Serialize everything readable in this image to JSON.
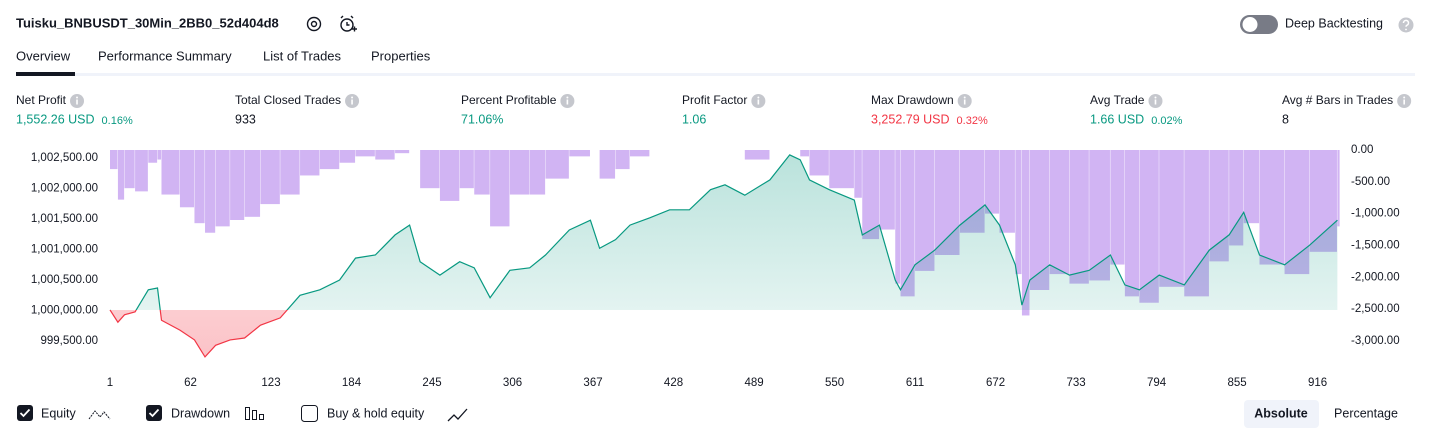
{
  "header": {
    "title": "Tuisku_BNBUSDT_30Min_2BB0_52d404d8",
    "toggle_label": "Deep Backtesting"
  },
  "tabs": [
    "Overview",
    "Performance Summary",
    "List of Trades",
    "Properties"
  ],
  "metrics": [
    {
      "label": "Net Profit",
      "value": "1,552.26 USD",
      "percent": "0.16%",
      "color": "#089981"
    },
    {
      "label": "Total Closed Trades",
      "value": "933",
      "color": "#131722"
    },
    {
      "label": "Percent Profitable",
      "value": "71.06%",
      "color": "#089981"
    },
    {
      "label": "Profit Factor",
      "value": "1.06",
      "color": "#089981"
    },
    {
      "label": "Max Drawdown",
      "value": "3,252.79 USD",
      "percent": "0.32%",
      "color": "#f23645"
    },
    {
      "label": "Avg Trade",
      "value": "1.66 USD",
      "percent": "0.02%",
      "color": "#089981"
    },
    {
      "label": "Avg # Bars in Trades",
      "value": "8",
      "color": "#131722"
    }
  ],
  "chart_data": {
    "type": "line",
    "x": [
      1,
      7,
      12,
      20,
      30,
      37,
      40,
      54,
      65,
      73,
      81,
      92,
      103,
      115,
      130,
      145,
      160,
      175,
      187,
      202,
      217,
      228,
      236,
      251,
      266,
      277,
      289,
      304,
      319,
      331,
      349,
      365,
      372,
      384,
      395,
      410,
      425,
      440,
      456,
      467,
      482,
      501,
      516,
      524,
      531,
      546,
      565,
      571,
      584,
      596,
      600,
      611,
      626,
      645,
      664,
      675,
      687,
      692,
      698,
      713,
      728,
      743,
      759,
      770,
      781,
      796,
      815,
      834,
      849,
      860,
      872,
      891,
      910,
      931
    ],
    "series": [
      {
        "name": "Equity",
        "color": "#089981",
        "negative_color": "#f23645",
        "values": [
          1000010,
          999810,
          999930,
          999980,
          1000340,
          1000370,
          999840,
          999680,
          999520,
          999240,
          999430,
          999520,
          999550,
          999760,
          999880,
          1000250,
          1000340,
          1000500,
          1000860,
          1000910,
          1001240,
          1001400,
          1000800,
          1000580,
          1000800,
          1000700,
          1000210,
          1000660,
          1000700,
          1000910,
          1001320,
          1001480,
          1001020,
          1001160,
          1001400,
          1001520,
          1001650,
          1001650,
          1001980,
          1002060,
          1001890,
          1002140,
          1002550,
          1002470,
          1002140,
          1001980,
          1001810,
          1001240,
          1001400,
          1000500,
          1000340,
          1000750,
          1000990,
          1001400,
          1001730,
          1001400,
          1000750,
          1000090,
          1000500,
          1000750,
          1000580,
          1000660,
          1000910,
          1000420,
          1000340,
          1000580,
          1000420,
          1000990,
          1001240,
          1001610,
          1000910,
          1000750,
          1001070,
          1001480
        ]
      },
      {
        "name": "Drawdown",
        "type": "bar",
        "axis": "y2",
        "color": "#c9a7f2",
        "values": [
          -300,
          -780,
          -600,
          -650,
          -200,
          -150,
          -700,
          -900,
          -1150,
          -1300,
          -1200,
          -1100,
          -1050,
          -850,
          -700,
          -400,
          -300,
          -200,
          -100,
          -150,
          -50,
          0,
          -600,
          -800,
          -600,
          -700,
          -1200,
          -700,
          -700,
          -450,
          -100,
          0,
          -450,
          -300,
          -100,
          0,
          0,
          0,
          0,
          0,
          -150,
          0,
          0,
          -100,
          -400,
          -600,
          -750,
          -1400,
          -1250,
          -2100,
          -2300,
          -1900,
          -1650,
          -1300,
          -1000,
          -1300,
          -1950,
          -2600,
          -2200,
          -1950,
          -2100,
          -2050,
          -1800,
          -2300,
          -2400,
          -2150,
          -2300,
          -1750,
          -1500,
          -1150,
          -1800,
          -1950,
          -1600,
          -1200
        ]
      }
    ],
    "xlim": [
      1,
      933
    ],
    "xticks": [
      1,
      62,
      123,
      184,
      245,
      306,
      367,
      428,
      489,
      550,
      611,
      672,
      733,
      794,
      855,
      916
    ],
    "ylim": [
      999190,
      1002630
    ],
    "yticks": [
      {
        "value": 999500,
        "label": "999,500.00"
      },
      {
        "value": 1000000,
        "label": "1,000,000.00"
      },
      {
        "value": 1000500,
        "label": "1,000,500.00"
      },
      {
        "value": 1001000,
        "label": "1,001,000.00"
      },
      {
        "value": 1001500,
        "label": "1,001,500.00"
      },
      {
        "value": 1002000,
        "label": "1,002,000.00"
      },
      {
        "value": 1002500,
        "label": "1,002,500.00"
      }
    ],
    "y2lim": [
      -3300,
      0
    ],
    "y2ticks": [
      {
        "value": 0,
        "label": "0.00"
      },
      {
        "value": -500,
        "label": "-500.00"
      },
      {
        "value": -1000,
        "label": "-1,000.00"
      },
      {
        "value": -1500,
        "label": "-1,500.00"
      },
      {
        "value": -2000,
        "label": "-2,000.00"
      },
      {
        "value": -2500,
        "label": "-2,500.00"
      },
      {
        "value": -3000,
        "label": "-3,000.00"
      }
    ]
  },
  "controls": {
    "buy_hold": "Buy & hold equity",
    "absolute": "Absolute",
    "percentage": "Percentage"
  }
}
